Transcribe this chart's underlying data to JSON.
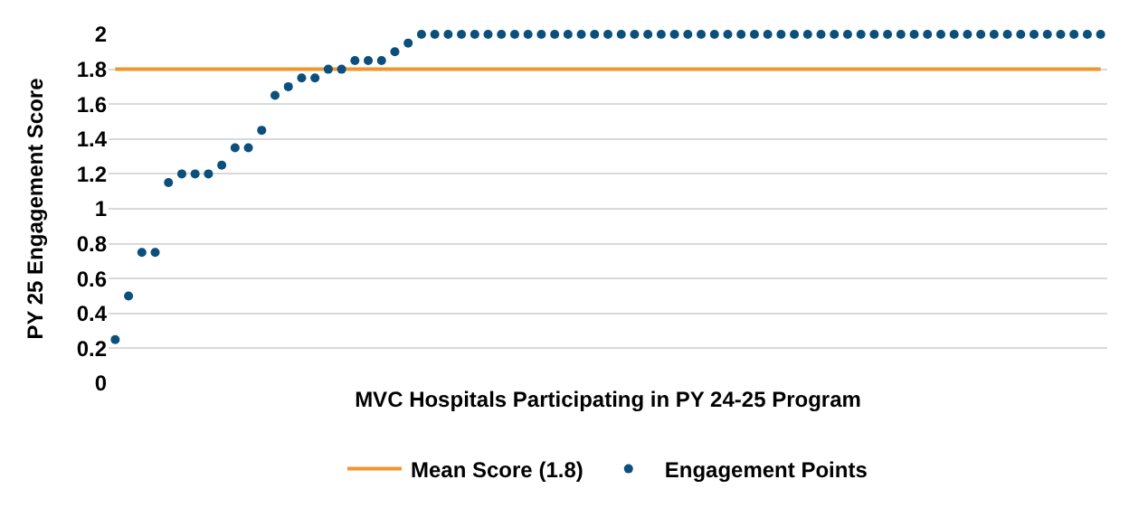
{
  "chart_data": {
    "type": "scatter",
    "xlabel": "MVC Hospitals Participating in PY 24-25 Program",
    "ylabel": "PY 25 Engagement Score",
    "categories": [
      null,
      null,
      null,
      null,
      null,
      null,
      null,
      null,
      null,
      null,
      null,
      null,
      null,
      null,
      null,
      null,
      null,
      null,
      null,
      null,
      null,
      null,
      null,
      null,
      null,
      null,
      null,
      null,
      null,
      null,
      null,
      null,
      null,
      null,
      null,
      null,
      null,
      null,
      null,
      null,
      null,
      null,
      null,
      null,
      null,
      null,
      null,
      null,
      null,
      null,
      null,
      null,
      null,
      null,
      null,
      null,
      null,
      null,
      null,
      null,
      null,
      null,
      null,
      null,
      null,
      null,
      null,
      null,
      null,
      null,
      null,
      null,
      null,
      null,
      null
    ],
    "series": [
      {
        "name": "Mean Score (1.8)",
        "type": "line",
        "marker": "none",
        "color": "#f0962e",
        "values": [
          1.8,
          1.8,
          1.8,
          1.8,
          1.8,
          1.8,
          1.8,
          1.8,
          1.8,
          1.8,
          1.8,
          1.8,
          1.8,
          1.8,
          1.8,
          1.8,
          1.8,
          1.8,
          1.8,
          1.8,
          1.8,
          1.8,
          1.8,
          1.8,
          1.8,
          1.8,
          1.8,
          1.8,
          1.8,
          1.8,
          1.8,
          1.8,
          1.8,
          1.8,
          1.8,
          1.8,
          1.8,
          1.8,
          1.8,
          1.8,
          1.8,
          1.8,
          1.8,
          1.8,
          1.8,
          1.8,
          1.8,
          1.8,
          1.8,
          1.8,
          1.8,
          1.8,
          1.8,
          1.8,
          1.8,
          1.8,
          1.8,
          1.8,
          1.8,
          1.8,
          1.8,
          1.8,
          1.8,
          1.8,
          1.8,
          1.8,
          1.8,
          1.8,
          1.8,
          1.8,
          1.8,
          1.8,
          1.8,
          1.8,
          1.8
        ]
      },
      {
        "name": "Engagement Points",
        "marker": "circle",
        "color": "#0b4f7c",
        "values": [
          0.25,
          0.5,
          0.75,
          0.75,
          1.15,
          1.2,
          1.2,
          1.2,
          1.25,
          1.35,
          1.35,
          1.45,
          1.65,
          1.7,
          1.75,
          1.75,
          1.8,
          1.8,
          1.85,
          1.85,
          1.85,
          1.9,
          1.95,
          2,
          2,
          2,
          2,
          2,
          2,
          2,
          2,
          2,
          2,
          2,
          2,
          2,
          2,
          2,
          2,
          2,
          2,
          2,
          2,
          2,
          2,
          2,
          2,
          2,
          2,
          2,
          2,
          2,
          2,
          2,
          2,
          2,
          2,
          2,
          2,
          2,
          2,
          2,
          2,
          2,
          2,
          2,
          2,
          2,
          2,
          2,
          2,
          2,
          2,
          2,
          2
        ]
      }
    ],
    "ylim": [
      0,
      2
    ],
    "yticks": [
      0,
      {
        "value": 0.2,
        "label": "0.2"
      },
      {
        "value": 0.4,
        "label": "0.4"
      },
      {
        "value": 0.6,
        "label": "0.6"
      },
      {
        "value": 0.8,
        "label": "0.8"
      },
      1,
      {
        "value": 1.2,
        "label": "1.2"
      },
      {
        "value": 1.4,
        "label": "1.4"
      },
      {
        "value": 1.6,
        "label": "1.6"
      },
      {
        "value": 1.8,
        "label": "1.8"
      },
      2
    ],
    "grid": "y",
    "legend": "bottom",
    "tick_labels": "y"
  }
}
